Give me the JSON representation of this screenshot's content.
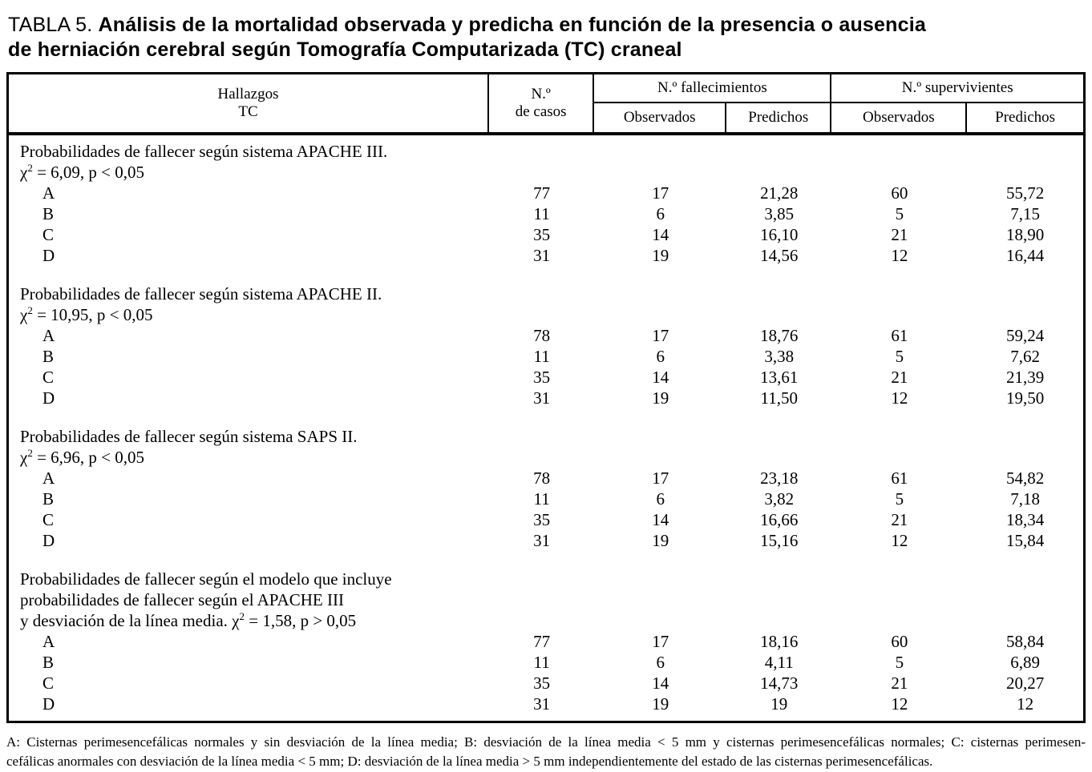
{
  "title": {
    "label": "TABLA 5.",
    "line1_bold": "Análisis de la mortalidad observada y predicha en función de la presencia o ausencia",
    "line2_bold": "de herniación cerebral según Tomografía Computarizada (TC) craneal"
  },
  "table": {
    "header": {
      "hallazgos": [
        "Hallazgos",
        "TC"
      ],
      "casos": [
        "N.º",
        "de casos"
      ],
      "fallecimientos_group": "N.º fallecimientos",
      "supervivientes_group": "N.º supervivientes",
      "fall_observados": "Observados",
      "fall_predichos": "Predichos",
      "sup_observados": "Observados",
      "sup_predichos": "Predichos"
    },
    "sections": [
      {
        "heading_lines": [
          "Probabilidades de fallecer según sistema APACHE III."
        ],
        "chi_prefix": "",
        "chi_base": "χ",
        "chi_sup": "2",
        "chi_rest": " = 6,09, p < 0,05",
        "rows": [
          {
            "label": "A",
            "casos": "77",
            "fall_obs": "17",
            "fall_pred": "21,28",
            "sup_obs": "60",
            "sup_pred": "55,72"
          },
          {
            "label": "B",
            "casos": "11",
            "fall_obs": "6",
            "fall_pred": "3,85",
            "sup_obs": "5",
            "sup_pred": "7,15"
          },
          {
            "label": "C",
            "casos": "35",
            "fall_obs": "14",
            "fall_pred": "16,10",
            "sup_obs": "21",
            "sup_pred": "18,90"
          },
          {
            "label": "D",
            "casos": "31",
            "fall_obs": "19",
            "fall_pred": "14,56",
            "sup_obs": "12",
            "sup_pred": "16,44"
          }
        ]
      },
      {
        "heading_lines": [
          "Probabilidades de fallecer según sistema APACHE II."
        ],
        "chi_prefix": "",
        "chi_base": "χ",
        "chi_sup": "2",
        "chi_rest": " = 10,95, p < 0,05",
        "rows": [
          {
            "label": "A",
            "casos": "78",
            "fall_obs": "17",
            "fall_pred": "18,76",
            "sup_obs": "61",
            "sup_pred": "59,24"
          },
          {
            "label": "B",
            "casos": "11",
            "fall_obs": "6",
            "fall_pred": "3,38",
            "sup_obs": "5",
            "sup_pred": "7,62"
          },
          {
            "label": "C",
            "casos": "35",
            "fall_obs": "14",
            "fall_pred": "13,61",
            "sup_obs": "21",
            "sup_pred": "21,39"
          },
          {
            "label": "D",
            "casos": "31",
            "fall_obs": "19",
            "fall_pred": "11,50",
            "sup_obs": "12",
            "sup_pred": "19,50"
          }
        ]
      },
      {
        "heading_lines": [
          "Probabilidades de fallecer según sistema SAPS II."
        ],
        "chi_prefix": "",
        "chi_base": "χ",
        "chi_sup": "2",
        "chi_rest": " = 6,96, p < 0,05",
        "rows": [
          {
            "label": "A",
            "casos": "78",
            "fall_obs": "17",
            "fall_pred": "23,18",
            "sup_obs": "61",
            "sup_pred": "54,82"
          },
          {
            "label": "B",
            "casos": "11",
            "fall_obs": "6",
            "fall_pred": "3,82",
            "sup_obs": "5",
            "sup_pred": "7,18"
          },
          {
            "label": "C",
            "casos": "35",
            "fall_obs": "14",
            "fall_pred": "16,66",
            "sup_obs": "21",
            "sup_pred": "18,34"
          },
          {
            "label": "D",
            "casos": "31",
            "fall_obs": "19",
            "fall_pred": "15,16",
            "sup_obs": "12",
            "sup_pred": "15,84"
          }
        ]
      },
      {
        "heading_lines": [
          "Probabilidades de fallecer según el modelo que incluye",
          "probabilidades de fallecer según el APACHE III"
        ],
        "chi_prefix": "y desviación de la línea media. ",
        "chi_base": "χ",
        "chi_sup": "2",
        "chi_rest": " = 1,58, p > 0,05",
        "rows": [
          {
            "label": "A",
            "casos": "77",
            "fall_obs": "17",
            "fall_pred": "18,16",
            "sup_obs": "60",
            "sup_pred": "58,84"
          },
          {
            "label": "B",
            "casos": "11",
            "fall_obs": "6",
            "fall_pred": "4,11",
            "sup_obs": "5",
            "sup_pred": "6,89"
          },
          {
            "label": "C",
            "casos": "35",
            "fall_obs": "14",
            "fall_pred": "14,73",
            "sup_obs": "21",
            "sup_pred": "20,27"
          },
          {
            "label": "D",
            "casos": "31",
            "fall_obs": "19",
            "fall_pred": "19",
            "sup_obs": "12",
            "sup_pred": "12"
          }
        ]
      }
    ]
  },
  "footnote_lines": [
    "A: Cisternas perimesencefálicas normales y sin desviación de la línea media; B: desviación de la línea media < 5 mm y cisternas perimesencefálicas normales; C: cisternas perimesen-",
    "cefálicas anormales con desviación de la línea media < 5 mm; D: desviación de la línea media > 5 mm independientemente del estado de las cisternas perimesencefálicas."
  ]
}
